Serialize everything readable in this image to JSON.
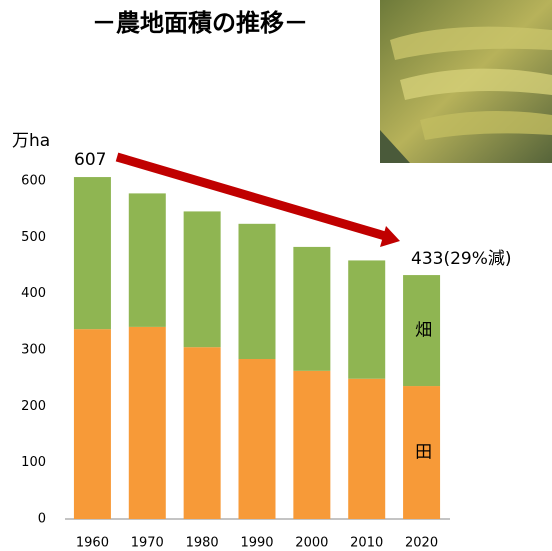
{
  "chart_data": {
    "type": "bar",
    "stacked": true,
    "title": "－農地面積の推移－",
    "y_label": "万ha",
    "categories": [
      "1960",
      "1970",
      "1980",
      "1990",
      "2000",
      "2010",
      "2020"
    ],
    "series": [
      {
        "name": "田",
        "color": "#f79a38",
        "values": [
          337,
          341,
          305,
          284,
          263,
          249,
          236
        ]
      },
      {
        "name": "畑",
        "color": "#8fb552",
        "values": [
          270,
          237,
          241,
          240,
          220,
          210,
          197
        ]
      }
    ],
    "annotations": [
      "607",
      "433(29%減)"
    ],
    "ylim": [
      0,
      600
    ],
    "yticks": [
      0,
      100,
      200,
      300,
      400,
      500,
      600
    ],
    "grid": false
  }
}
